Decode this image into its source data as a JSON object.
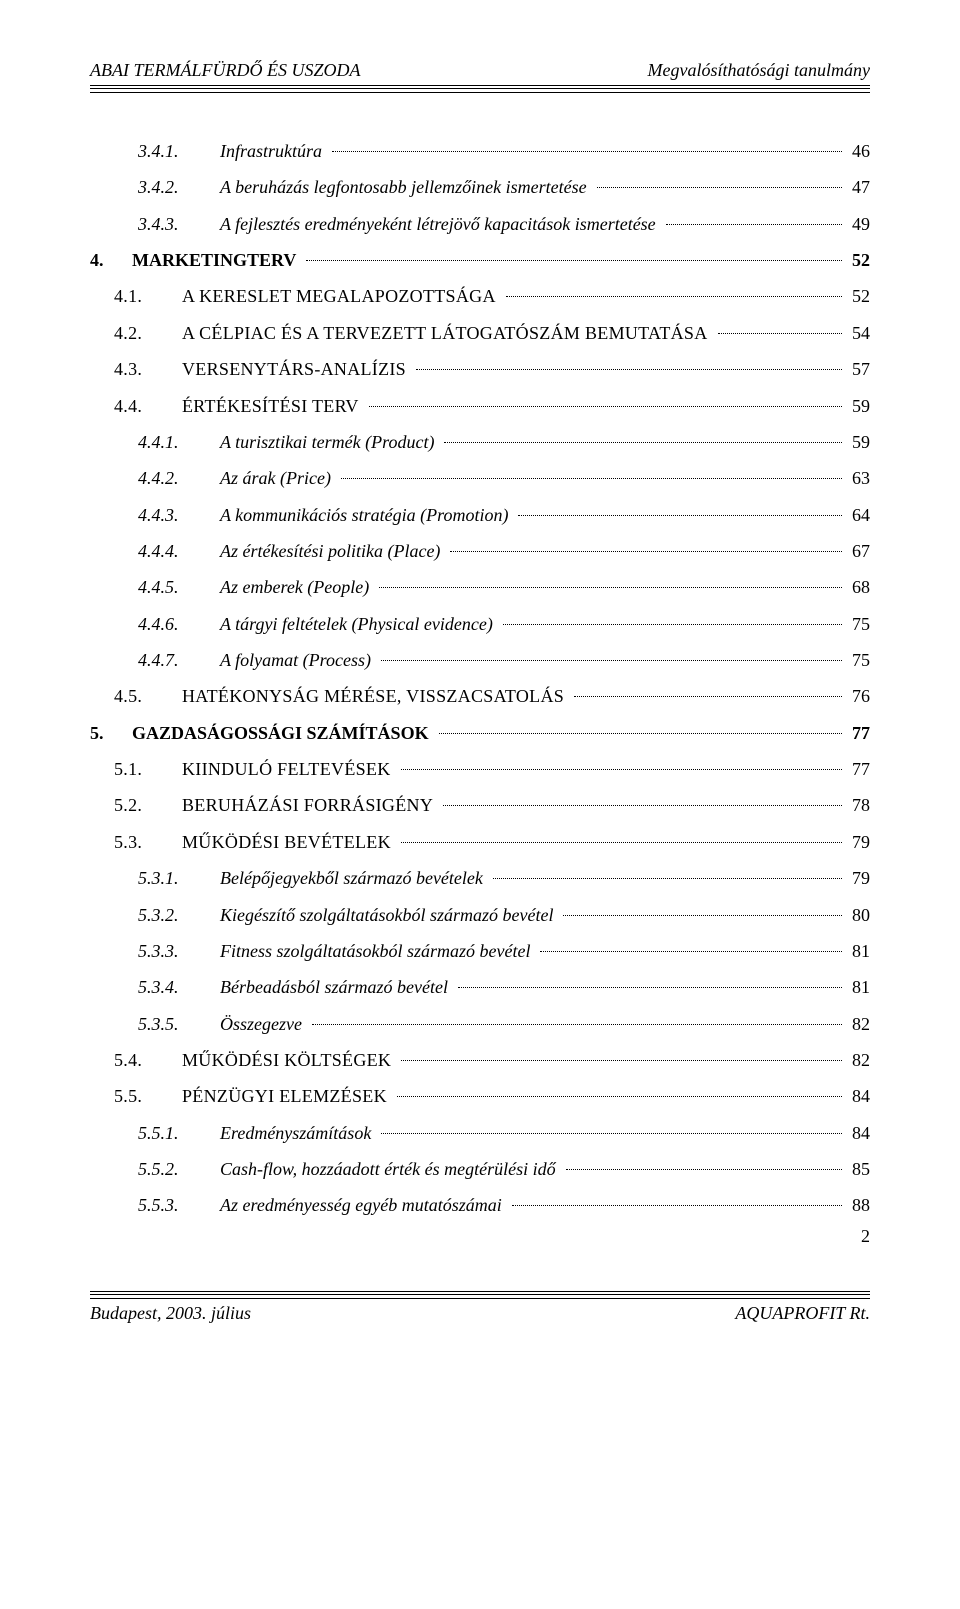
{
  "header": {
    "left": "ABAI TERMÁLFÜRDŐ ÉS USZODA",
    "right": "Megvalósíthatósági tanulmány"
  },
  "toc": [
    {
      "indent": 2,
      "num": "3.4.1.",
      "title": "Infrastruktúra",
      "page": "46",
      "style": "italic",
      "numClass": "num-col-2"
    },
    {
      "indent": 2,
      "num": "3.4.2.",
      "title": "A beruházás legfontosabb jellemzőinek ismertetése",
      "page": "47",
      "style": "italic",
      "numClass": "num-col-2"
    },
    {
      "indent": 2,
      "num": "3.4.3.",
      "title": "A fejlesztés eredményeként létrejövő kapacitások ismertetése",
      "page": "49",
      "style": "italic",
      "numClass": "num-col-2"
    },
    {
      "indent": 0,
      "num": "4.",
      "title": "MARKETINGTERV",
      "page": "52",
      "style": "bold",
      "numClass": "num-col-0"
    },
    {
      "indent": 1,
      "num": "4.1.",
      "title": "A KERESLET MEGALAPOZOTTSÁGA",
      "page": "52",
      "style": "smallcaps",
      "numClass": "num-col-1"
    },
    {
      "indent": 1,
      "num": "4.2.",
      "title": "A CÉLPIAC ÉS A TERVEZETT LÁTOGATÓSZÁM BEMUTATÁSA",
      "page": "54",
      "style": "smallcaps",
      "numClass": "num-col-1"
    },
    {
      "indent": 1,
      "num": "4.3.",
      "title": "VERSENYTÁRS-ANALÍZIS",
      "page": "57",
      "style": "smallcaps",
      "numClass": "num-col-1"
    },
    {
      "indent": 1,
      "num": "4.4.",
      "title": "ÉRTÉKESÍTÉSI TERV",
      "page": "59",
      "style": "smallcaps",
      "numClass": "num-col-1"
    },
    {
      "indent": 2,
      "num": "4.4.1.",
      "title": "A turisztikai termék (Product)",
      "page": "59",
      "style": "italic",
      "numClass": "num-col-2"
    },
    {
      "indent": 2,
      "num": "4.4.2.",
      "title": "Az árak (Price)",
      "page": "63",
      "style": "italic",
      "numClass": "num-col-2"
    },
    {
      "indent": 2,
      "num": "4.4.3.",
      "title": "A kommunikációs stratégia (Promotion)",
      "page": "64",
      "style": "italic",
      "numClass": "num-col-2"
    },
    {
      "indent": 2,
      "num": "4.4.4.",
      "title": "Az értékesítési politika (Place)",
      "page": "67",
      "style": "italic",
      "numClass": "num-col-2"
    },
    {
      "indent": 2,
      "num": "4.4.5.",
      "title": "Az emberek (People)",
      "page": "68",
      "style": "italic",
      "numClass": "num-col-2"
    },
    {
      "indent": 2,
      "num": "4.4.6.",
      "title": "A tárgyi feltételek (Physical evidence)",
      "page": "75",
      "style": "italic",
      "numClass": "num-col-2"
    },
    {
      "indent": 2,
      "num": "4.4.7.",
      "title": "A folyamat (Process)",
      "page": "75",
      "style": "italic",
      "numClass": "num-col-2"
    },
    {
      "indent": 1,
      "num": "4.5.",
      "title": "HATÉKONYSÁG MÉRÉSE, VISSZACSATOLÁS",
      "page": "76",
      "style": "smallcaps",
      "numClass": "num-col-1"
    },
    {
      "indent": 0,
      "num": "5.",
      "title": "GAZDASÁGOSSÁGI SZÁMÍTÁSOK",
      "page": "77",
      "style": "bold",
      "numClass": "num-col-0"
    },
    {
      "indent": 1,
      "num": "5.1.",
      "title": "KIINDULÓ FELTEVÉSEK",
      "page": "77",
      "style": "smallcaps",
      "numClass": "num-col-1"
    },
    {
      "indent": 1,
      "num": "5.2.",
      "title": "BERUHÁZÁSI FORRÁSIGÉNY",
      "page": "78",
      "style": "smallcaps",
      "numClass": "num-col-1"
    },
    {
      "indent": 1,
      "num": "5.3.",
      "title": "MŰKÖDÉSI BEVÉTELEK",
      "page": "79",
      "style": "smallcaps",
      "numClass": "num-col-1"
    },
    {
      "indent": 2,
      "num": "5.3.1.",
      "title": "Belépőjegyekből származó bevételek",
      "page": "79",
      "style": "italic",
      "numClass": "num-col-2"
    },
    {
      "indent": 2,
      "num": "5.3.2.",
      "title": "Kiegészítő szolgáltatásokból származó bevétel",
      "page": "80",
      "style": "italic",
      "numClass": "num-col-2"
    },
    {
      "indent": 2,
      "num": "5.3.3.",
      "title": "Fitness szolgáltatásokból származó bevétel",
      "page": "81",
      "style": "italic",
      "numClass": "num-col-2"
    },
    {
      "indent": 2,
      "num": "5.3.4.",
      "title": "Bérbeadásból származó bevétel",
      "page": "81",
      "style": "italic",
      "numClass": "num-col-2"
    },
    {
      "indent": 2,
      "num": "5.3.5.",
      "title": "Összegezve",
      "page": "82",
      "style": "italic",
      "numClass": "num-col-2"
    },
    {
      "indent": 1,
      "num": "5.4.",
      "title": "MŰKÖDÉSI KÖLTSÉGEK",
      "page": "82",
      "style": "smallcaps",
      "numClass": "num-col-1"
    },
    {
      "indent": 1,
      "num": "5.5.",
      "title": "PÉNZÜGYI ELEMZÉSEK",
      "page": "84",
      "style": "smallcaps",
      "numClass": "num-col-1"
    },
    {
      "indent": 2,
      "num": "5.5.1.",
      "title": "Eredményszámítások",
      "page": "84",
      "style": "italic",
      "numClass": "num-col-2"
    },
    {
      "indent": 2,
      "num": "5.5.2.",
      "title": "Cash-flow, hozzáadott érték és megtérülési idő",
      "page": "85",
      "style": "italic",
      "numClass": "num-col-2"
    },
    {
      "indent": 2,
      "num": "5.5.3.",
      "title": "Az eredményesség egyéb mutatószámai",
      "page": "88",
      "style": "italic",
      "numClass": "num-col-2"
    }
  ],
  "footer": {
    "left": "Budapest, 2003. július",
    "right": "AQUAPROFIT Rt.",
    "pageNumber": "2"
  }
}
